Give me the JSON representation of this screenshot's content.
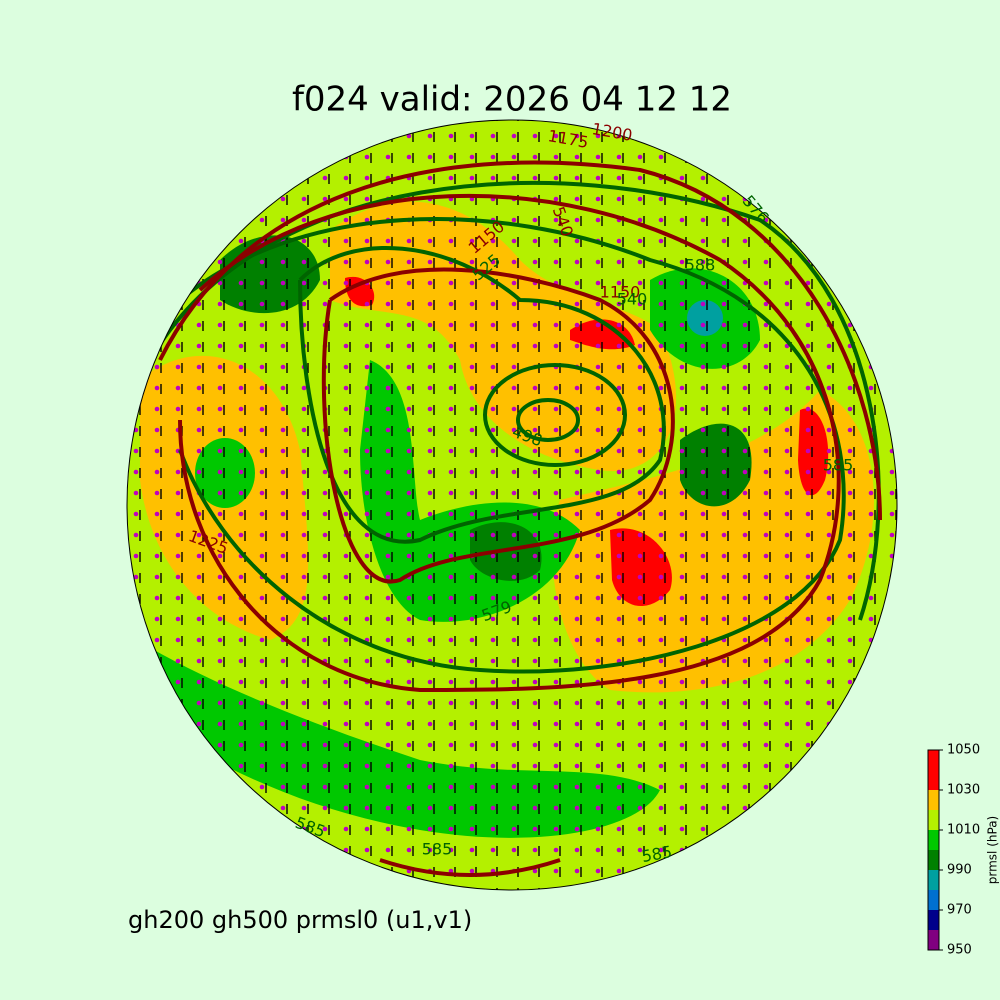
{
  "title": "f024 valid:   2026 04 12 12",
  "caption": "gh200 gh500 prmsl0 (u1,v1)",
  "colorbar": {
    "label": "prmsl (hPa)",
    "bounds": [
      950,
      960,
      970,
      980,
      990,
      1000,
      1010,
      1020,
      1030,
      1050
    ],
    "colors": [
      "#800080",
      "#00008b",
      "#0070d0",
      "#00a0a0",
      "#008000",
      "#00c800",
      "#b4f000",
      "#ffc000",
      "#ff0000"
    ],
    "ticks": [
      950,
      970,
      990,
      1010,
      1030,
      1050
    ]
  },
  "contour_labels": [
    "1200",
    "1175",
    "576",
    "525",
    "540",
    "1150",
    "540",
    "588",
    "585",
    "1225",
    "579",
    "498",
    "585",
    "585",
    "585",
    "1150"
  ]
}
